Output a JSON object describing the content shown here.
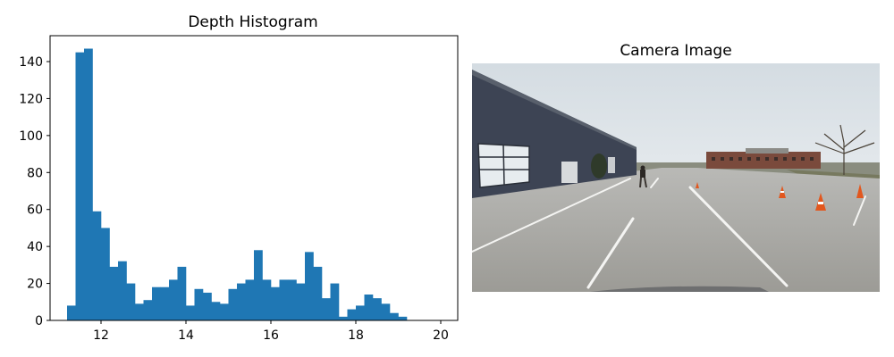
{
  "figure": {
    "left_panel_title": "Depth Histogram",
    "right_panel_title": "Camera Image"
  },
  "chart_data": {
    "type": "bar",
    "title": "Depth Histogram",
    "xlabel": "",
    "ylabel": "",
    "xlim": [
      10.8,
      20.4
    ],
    "ylim": [
      0,
      154
    ],
    "x_ticks": [
      12,
      14,
      16,
      18,
      20
    ],
    "y_ticks": [
      0,
      20,
      40,
      60,
      80,
      100,
      120,
      140
    ],
    "bar_color": "#1f77b4",
    "bin_start": 11.2,
    "bin_width": 0.2,
    "values": [
      8,
      145,
      147,
      59,
      50,
      29,
      32,
      20,
      9,
      11,
      18,
      18,
      22,
      29,
      8,
      17,
      15,
      10,
      9,
      17,
      20,
      22,
      38,
      22,
      18,
      22,
      22,
      20,
      37,
      29,
      12,
      20,
      2,
      6,
      8,
      14,
      12,
      9,
      4,
      2
    ],
    "grid": false
  }
}
